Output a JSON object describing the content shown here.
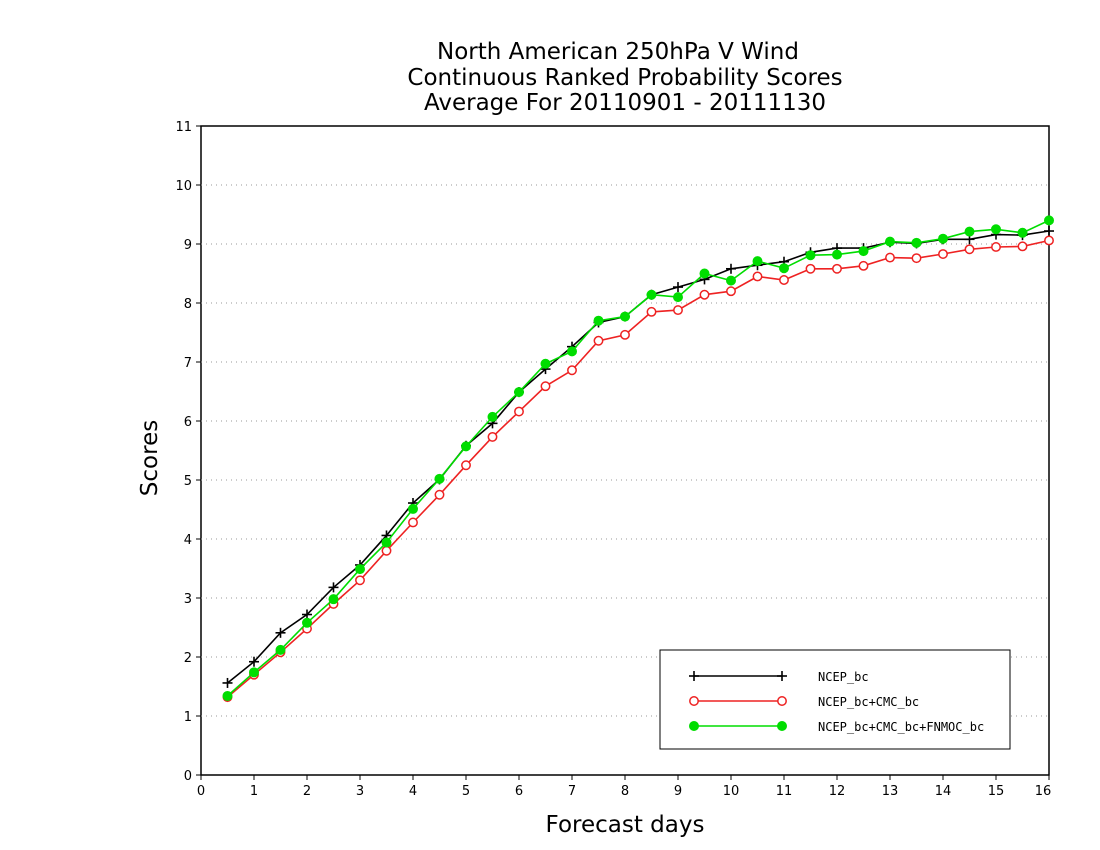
{
  "chart_data": {
    "type": "line",
    "title": [
      "North American 250hPa V Wind",
      "Continuous Ranked Probability Scores",
      "Average For 20110901 - 20111130"
    ],
    "xlabel": "Forecast days",
    "ylabel": "Scores",
    "xlim": [
      0,
      16
    ],
    "ylim": [
      0,
      11
    ],
    "xticks": [
      0,
      1,
      2,
      3,
      4,
      5,
      6,
      7,
      8,
      9,
      10,
      11,
      12,
      13,
      14,
      15,
      16
    ],
    "yticks": [
      0,
      1,
      2,
      3,
      4,
      5,
      6,
      7,
      8,
      9,
      10,
      11
    ],
    "grid": true,
    "legend_position": "bottom-right",
    "x": [
      0.5,
      1,
      1.5,
      2,
      2.5,
      3,
      3.5,
      4,
      4.5,
      5,
      5.5,
      6,
      6.5,
      7,
      7.5,
      8,
      8.5,
      9,
      9.5,
      10,
      10.5,
      11,
      11.5,
      12,
      12.5,
      13,
      13.5,
      14,
      14.5,
      15,
      15.5,
      16
    ],
    "series": [
      {
        "name": "NCEP_bc",
        "color": "#000000",
        "marker": "plus",
        "values": [
          1.56,
          1.92,
          2.41,
          2.72,
          3.18,
          3.56,
          4.06,
          4.61,
          5.01,
          5.58,
          5.96,
          6.49,
          6.88,
          7.26,
          7.67,
          7.77,
          8.14,
          8.27,
          8.4,
          8.58,
          8.64,
          8.7,
          8.86,
          8.93,
          8.93,
          9.03,
          9.01,
          9.08,
          9.08,
          9.16,
          9.15,
          9.22
        ]
      },
      {
        "name": "NCEP_bc+CMC_bc",
        "color": "#ee2222",
        "marker": "open-circle",
        "values": [
          1.32,
          1.7,
          2.08,
          2.48,
          2.9,
          3.3,
          3.8,
          4.28,
          4.75,
          5.25,
          5.73,
          6.16,
          6.59,
          6.86,
          7.36,
          7.46,
          7.85,
          7.88,
          8.14,
          8.2,
          8.45,
          8.39,
          8.58,
          8.58,
          8.63,
          8.77,
          8.76,
          8.83,
          8.91,
          8.95,
          8.96,
          9.06
        ]
      },
      {
        "name": "NCEP_bc+CMC_bc+FNMOC_bc",
        "color": "#00dd00",
        "marker": "filled-circle",
        "values": [
          1.34,
          1.74,
          2.12,
          2.58,
          2.98,
          3.49,
          3.94,
          4.51,
          5.02,
          5.57,
          6.07,
          6.49,
          6.97,
          7.18,
          7.7,
          7.77,
          8.14,
          8.1,
          8.5,
          8.38,
          8.71,
          8.59,
          8.81,
          8.82,
          8.88,
          9.04,
          9.02,
          9.09,
          9.21,
          9.25,
          9.19,
          9.4
        ]
      }
    ]
  }
}
